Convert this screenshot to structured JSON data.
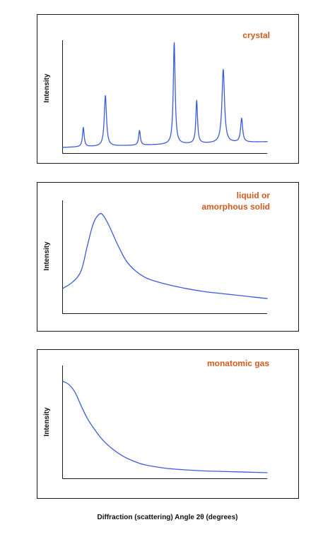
{
  "chart_data": [
    {
      "type": "line",
      "title": "crystal",
      "ylabel": "Intensity",
      "xlabel": "",
      "grid": false,
      "ylim": [
        0,
        100
      ],
      "xlim": [
        0,
        100
      ],
      "series": [
        {
          "color": "#3b5bdb",
          "baseline": {
            "start": 5,
            "end": 10
          },
          "peaks": [
            {
              "x": 10,
              "height": 17,
              "width": 0.5
            },
            {
              "x": 20.8,
              "height": 45,
              "width": 0.65
            },
            {
              "x": 37.5,
              "height": 13,
              "width": 0.5
            },
            {
              "x": 54.5,
              "height": 90,
              "width": 0.55
            },
            {
              "x": 65.5,
              "height": 38,
              "width": 0.5
            },
            {
              "x": 78.5,
              "height": 65,
              "width": 0.75
            },
            {
              "x": 87.5,
              "height": 21,
              "width": 0.6
            }
          ]
        }
      ]
    },
    {
      "type": "line",
      "title": "liquid or\namorphous solid",
      "ylabel": "Intensity",
      "xlabel": "",
      "grid": false,
      "ylim": [
        0,
        100
      ],
      "xlim": [
        0,
        100
      ],
      "series": [
        {
          "color": "#3b5bdb",
          "x": [
            0,
            5,
            9,
            12,
            15,
            18,
            20,
            23,
            27,
            32,
            40,
            50,
            60,
            70,
            80,
            90,
            100
          ],
          "y": [
            22,
            28,
            38,
            60,
            80,
            88,
            86,
            76,
            60,
            44,
            32,
            26,
            22,
            19,
            17,
            15,
            13
          ]
        }
      ]
    },
    {
      "type": "line",
      "title": "monatomic gas",
      "ylabel": "Intensity",
      "xlabel": "",
      "grid": false,
      "ylim": [
        0,
        100
      ],
      "xlim": [
        0,
        100
      ],
      "series": [
        {
          "color": "#3b5bdb",
          "x": [
            0,
            3,
            6,
            9,
            12,
            16,
            20,
            25,
            30,
            35,
            40,
            50,
            60,
            70,
            80,
            90,
            100
          ],
          "y": [
            86,
            83,
            76,
            64,
            53,
            42,
            33,
            25,
            19,
            15,
            12,
            9,
            7.5,
            6.5,
            6,
            5.5,
            5
          ]
        }
      ]
    }
  ],
  "figure": {
    "xlabel": "Diffraction (scattering) Angle 2θ (degrees)"
  }
}
